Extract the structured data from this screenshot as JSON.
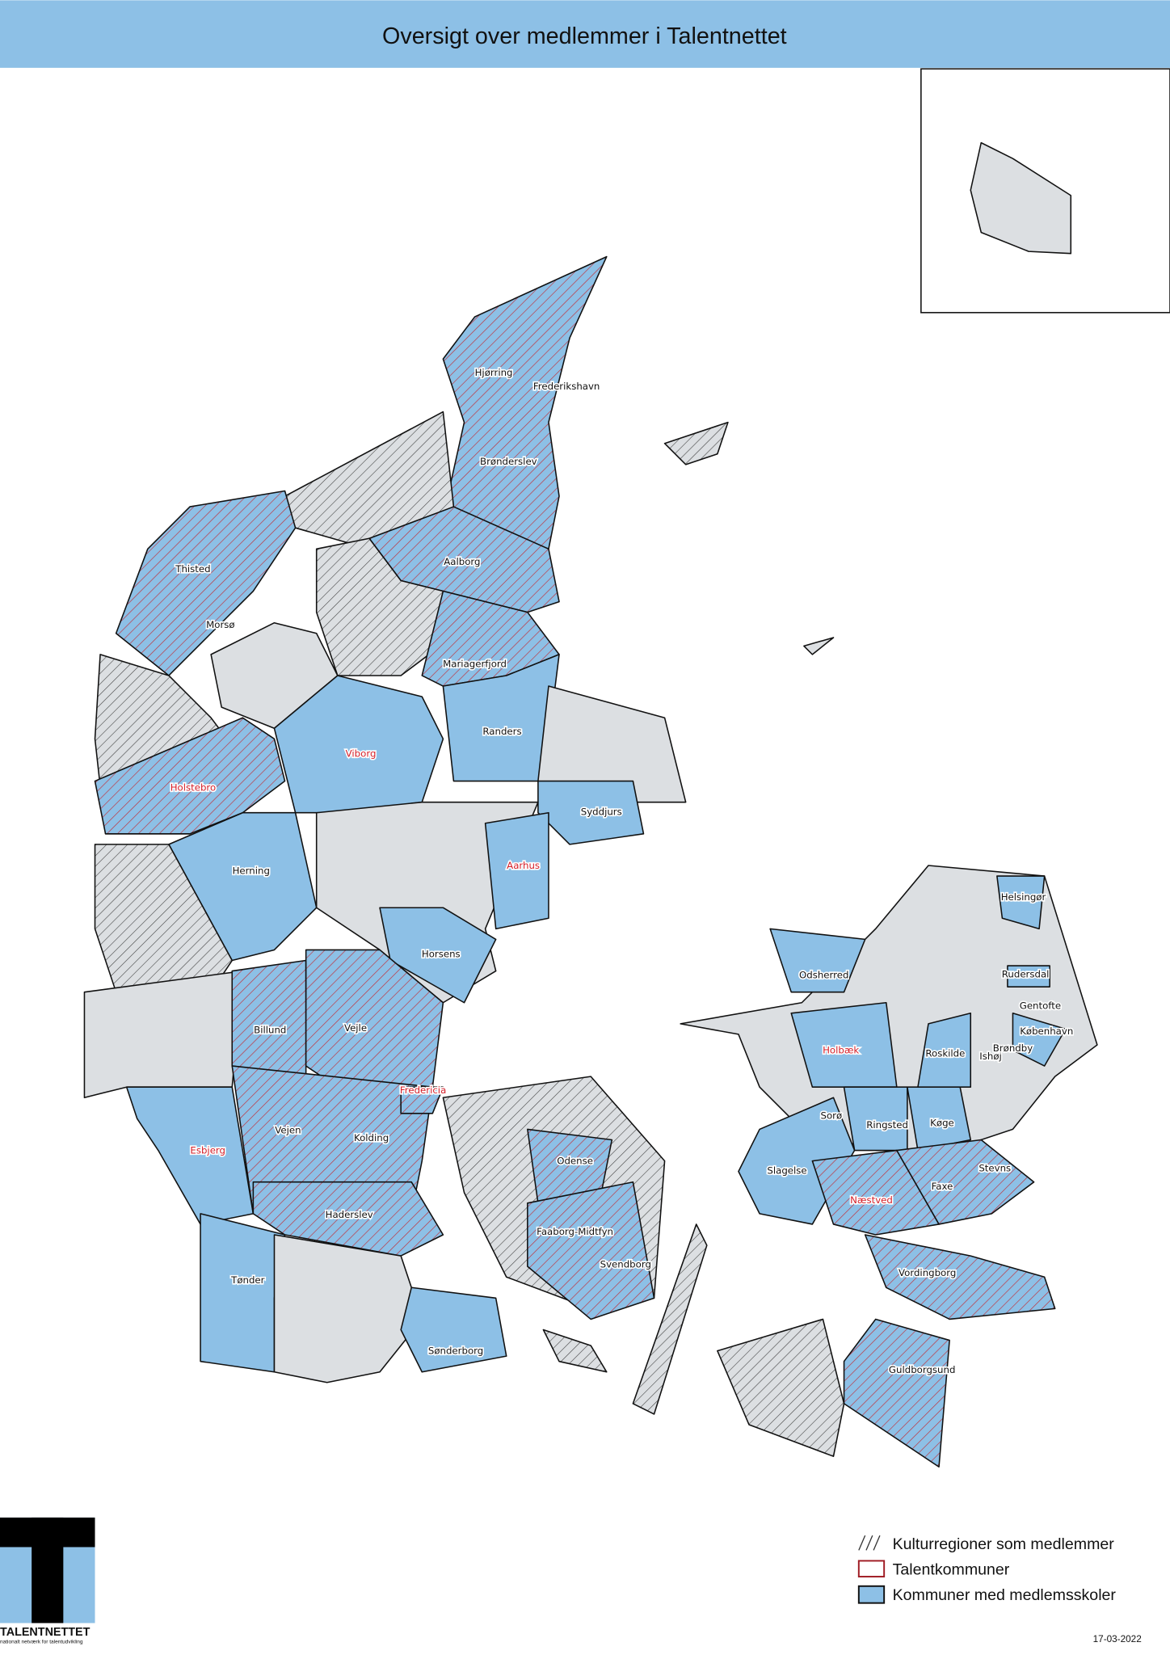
{
  "title": "Oversigt over medlemmer i Talentnettet",
  "colors": {
    "member_school_fill": "#8dc0e6",
    "other_fill": "#dcdfe2",
    "talent_border": "#d4202a",
    "hatch": "#333333",
    "title_bar": "#8dc0e6"
  },
  "legend": {
    "items": [
      {
        "label": "Kulturregioner som medlemmer",
        "symbol": "hatch"
      },
      {
        "label": "Talentkommuner",
        "symbol": "red-outline"
      },
      {
        "label": "Kommuner med medlemsskoler",
        "symbol": "blue-fill"
      }
    ]
  },
  "labels": {
    "hjorring": "Hjørring",
    "frederikshavn": "Frederikshavn",
    "bronderslev": "Brønderslev",
    "thisted": "Thisted",
    "aalborg": "Aalborg",
    "morso": "Morsø",
    "mariagerfjord": "Mariagerfjord",
    "randers": "Randers",
    "viborg": "Viborg",
    "holstebro": "Holstebro",
    "syddjurs": "Syddjurs",
    "aarhus": "Aarhus",
    "herning": "Herning",
    "horsens": "Horsens",
    "billund": "Billund",
    "vejle": "Vejle",
    "fredericia": "Fredericia",
    "vejen": "Vejen",
    "kolding": "Kolding",
    "esbjerg": "Esbjerg",
    "haderslev": "Haderslev",
    "odense": "Odense",
    "faaborg": "Faaborg-Midtfyn",
    "svendborg": "Svendborg",
    "tonder": "Tønder",
    "sonderborg": "Sønderborg",
    "odsherred": "Odsherred",
    "holbaek": "Holbæk",
    "roskilde": "Roskilde",
    "ishoj": "Ishøj",
    "brondby": "Brøndby",
    "kobenhavn": "København",
    "gentofte": "Gentofte",
    "rudersdal": "Rudersdal",
    "helsingor": "Helsingør",
    "soro": "Sorø",
    "ringsted": "Ringsted",
    "koge": "Køge",
    "slagelse": "Slagelse",
    "stevns": "Stevns",
    "naestved": "Næstved",
    "faxe": "Faxe",
    "vordingborg": "Vordingborg",
    "guldborgsund": "Guldborgsund"
  },
  "logo": {
    "name": "TALENTNETTET",
    "tagline": "nationalt netværk for talentudvikling"
  },
  "date": "17-03-2022"
}
